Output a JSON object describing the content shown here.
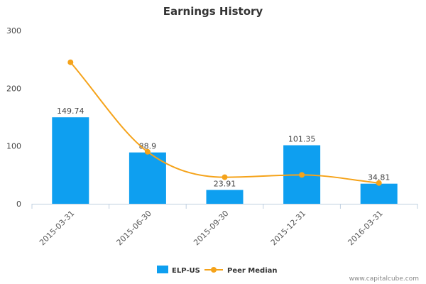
{
  "chart_data": {
    "type": "bar",
    "title": "Earnings History",
    "categories": [
      "2015-03-31",
      "2015-06-30",
      "2015-09-30",
      "2015-12-31",
      "2016-03-31"
    ],
    "ylim": [
      0,
      300
    ],
    "yticks": [
      0,
      100,
      200,
      300
    ],
    "grid": false,
    "legend_position": "bottom",
    "series": [
      {
        "name": "ELP-US",
        "type": "bar",
        "color": "#0e9ff0",
        "values": [
          149.74,
          88.9,
          23.91,
          101.35,
          34.81
        ],
        "labels": [
          "149.74",
          "88.9",
          "23.91",
          "101.35",
          "34.81"
        ]
      },
      {
        "name": "Peer Median",
        "type": "line",
        "color": "#f5a31a",
        "values": [
          245,
          90,
          46,
          50,
          36
        ]
      }
    ]
  },
  "credit": "www.capitalcube.com"
}
